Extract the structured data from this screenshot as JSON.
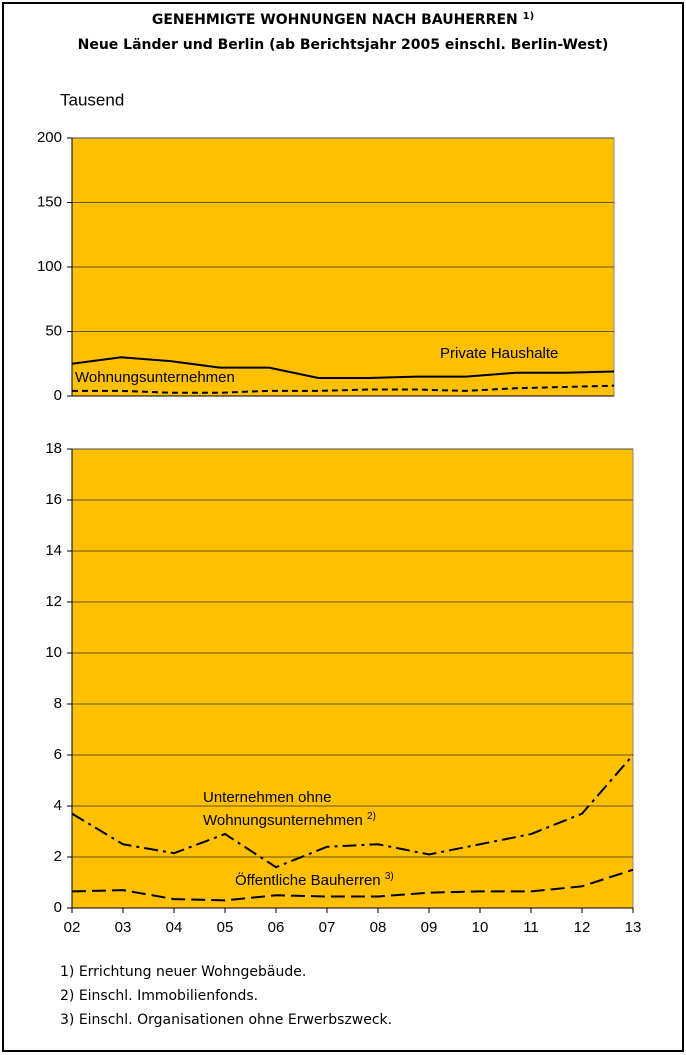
{
  "title": "GENEHMIGTE WOHNUNGEN NACH BAUHERREN",
  "title_note": "1)",
  "subtitle": "Neue Länder und Berlin (ab Berichtsjahr 2005 einschl. Berlin-West)",
  "unit": "Tausend",
  "chart_data": [
    {
      "type": "line",
      "ylim": [
        0,
        200
      ],
      "yticks": [
        0,
        50,
        100,
        150,
        200
      ],
      "grid": true,
      "background": "#ffc000",
      "series": [
        {
          "name": "Private Haushalte",
          "color": "#000000",
          "dash": "solid",
          "values": [
            25,
            30,
            27,
            22,
            22,
            14,
            14,
            15,
            15,
            18,
            18,
            19
          ]
        },
        {
          "name": "Wohnungsunternehmen",
          "color": "#000000",
          "dash": "dashed",
          "values": [
            4,
            4,
            2.5,
            2.5,
            4,
            4,
            5,
            5,
            4,
            6,
            7,
            8
          ]
        }
      ]
    },
    {
      "type": "line",
      "categories": [
        "02",
        "03",
        "04",
        "05",
        "06",
        "07",
        "08",
        "09",
        "10",
        "11",
        "12",
        "13"
      ],
      "ylim": [
        0,
        18
      ],
      "yticks": [
        0,
        2,
        4,
        6,
        8,
        10,
        12,
        14,
        16,
        18
      ],
      "grid": true,
      "background": "#ffc000",
      "series": [
        {
          "name": "Unternehmen ohne Wohnungsunternehmen",
          "note": "2)",
          "color": "#000000",
          "dash": "dashdot",
          "values": [
            3.7,
            2.5,
            2.15,
            2.9,
            1.6,
            2.4,
            2.5,
            2.1,
            2.5,
            2.9,
            3.7,
            6.0
          ]
        },
        {
          "name": "Öffentliche Bauherren",
          "note": "3)",
          "color": "#000000",
          "dash": "longdash",
          "values": [
            0.65,
            0.7,
            0.35,
            0.3,
            0.5,
            0.45,
            0.45,
            0.6,
            0.65,
            0.65,
            0.85,
            1.5
          ]
        }
      ]
    }
  ],
  "footnotes": [
    "1) Errichtung neuer Wohngebäude.",
    "2) Einschl. Immobilienfonds.",
    "3) Einschl. Organisationen ohne Erwerbszweck."
  ]
}
